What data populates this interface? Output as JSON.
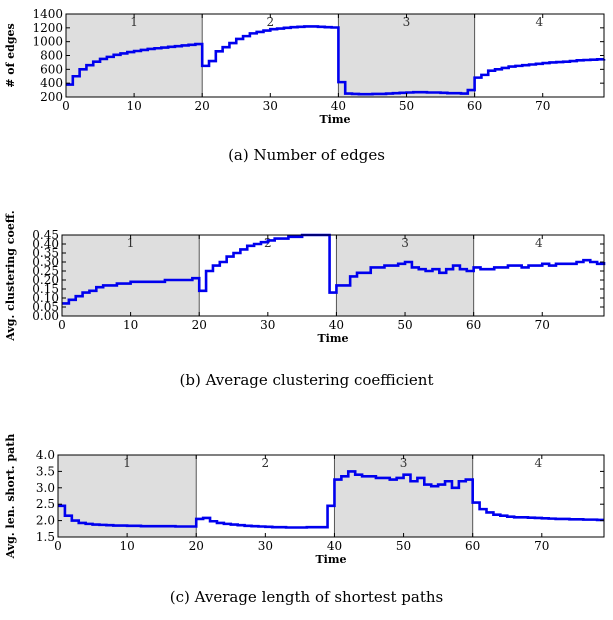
{
  "styles": {
    "line_color": "#0000ee",
    "phase_fill": "#dedede",
    "axis_color": "#000000"
  },
  "chart_data": [
    {
      "type": "line",
      "caption": "(a)  Number of edges",
      "xlabel": "Time",
      "ylabel": "# of edges",
      "xlim": [
        0,
        79
      ],
      "ylim": [
        200,
        1400
      ],
      "xticks": [
        0,
        10,
        20,
        30,
        40,
        50,
        60,
        70
      ],
      "yticks": [
        200,
        400,
        600,
        800,
        1000,
        1200,
        1400
      ],
      "phases": [
        {
          "label": "1",
          "start": 0,
          "end": 20,
          "shaded": true
        },
        {
          "label": "2",
          "start": 20,
          "end": 40,
          "shaded": false
        },
        {
          "label": "3",
          "start": 40,
          "end": 60,
          "shaded": true
        },
        {
          "label": "4",
          "start": 60,
          "end": 79,
          "shaded": false
        }
      ],
      "series": [
        {
          "step": true,
          "x": [
            0,
            1,
            2,
            3,
            4,
            5,
            6,
            7,
            8,
            9,
            10,
            11,
            12,
            13,
            14,
            15,
            16,
            17,
            18,
            19,
            20,
            21,
            22,
            23,
            24,
            25,
            26,
            27,
            28,
            29,
            30,
            31,
            32,
            33,
            34,
            35,
            36,
            37,
            38,
            39,
            40,
            41,
            42,
            43,
            44,
            45,
            46,
            47,
            48,
            49,
            50,
            51,
            52,
            53,
            54,
            55,
            56,
            57,
            58,
            59,
            60,
            61,
            62,
            63,
            64,
            65,
            66,
            67,
            68,
            69,
            70,
            71,
            72,
            73,
            74,
            75,
            76,
            77,
            78,
            79
          ],
          "y": [
            380,
            500,
            600,
            660,
            710,
            750,
            780,
            810,
            830,
            850,
            865,
            880,
            895,
            905,
            915,
            925,
            935,
            945,
            955,
            965,
            650,
            720,
            860,
            920,
            980,
            1040,
            1080,
            1120,
            1140,
            1160,
            1180,
            1190,
            1200,
            1210,
            1215,
            1220,
            1220,
            1215,
            1210,
            1205,
            415,
            250,
            245,
            240,
            240,
            245,
            245,
            250,
            255,
            260,
            265,
            270,
            270,
            265,
            265,
            260,
            255,
            255,
            250,
            300,
            480,
            520,
            580,
            600,
            620,
            640,
            650,
            660,
            670,
            680,
            690,
            700,
            705,
            710,
            720,
            730,
            735,
            740,
            745,
            750
          ]
        }
      ]
    },
    {
      "type": "line",
      "caption": "(b) Average clustering coefficient",
      "xlabel": "Time",
      "ylabel": "Avg. clustering coeff.",
      "xlim": [
        0,
        79
      ],
      "ylim": [
        0.0,
        0.45
      ],
      "xticks": [
        0,
        10,
        20,
        30,
        40,
        50,
        60,
        70
      ],
      "yticks": [
        0.0,
        0.05,
        0.1,
        0.15,
        0.2,
        0.25,
        0.3,
        0.35,
        0.4,
        0.45
      ],
      "ytick_labels": [
        "0.00",
        "0.05",
        "0.10",
        "0.15",
        "0.20",
        "0.25",
        "0.30",
        "0.35",
        "0.40",
        "0.45"
      ],
      "phases": [
        {
          "label": "1",
          "start": 0,
          "end": 20,
          "shaded": true
        },
        {
          "label": "2",
          "start": 20,
          "end": 40,
          "shaded": false
        },
        {
          "label": "3",
          "start": 40,
          "end": 60,
          "shaded": true
        },
        {
          "label": "4",
          "start": 60,
          "end": 79,
          "shaded": false
        }
      ],
      "series": [
        {
          "step": true,
          "x": [
            0,
            1,
            2,
            3,
            4,
            5,
            6,
            7,
            8,
            9,
            10,
            11,
            12,
            13,
            14,
            15,
            16,
            17,
            18,
            19,
            20,
            21,
            22,
            23,
            24,
            25,
            26,
            27,
            28,
            29,
            30,
            31,
            32,
            33,
            34,
            35,
            36,
            37,
            38,
            39,
            40,
            41,
            42,
            43,
            44,
            45,
            46,
            47,
            48,
            49,
            50,
            51,
            52,
            53,
            54,
            55,
            56,
            57,
            58,
            59,
            60,
            61,
            62,
            63,
            64,
            65,
            66,
            67,
            68,
            69,
            70,
            71,
            72,
            73,
            74,
            75,
            76,
            77,
            78,
            79
          ],
          "y": [
            0.07,
            0.09,
            0.11,
            0.13,
            0.14,
            0.16,
            0.17,
            0.17,
            0.18,
            0.18,
            0.19,
            0.19,
            0.19,
            0.19,
            0.19,
            0.2,
            0.2,
            0.2,
            0.2,
            0.21,
            0.14,
            0.25,
            0.28,
            0.3,
            0.33,
            0.35,
            0.37,
            0.39,
            0.4,
            0.41,
            0.42,
            0.43,
            0.43,
            0.44,
            0.44,
            0.45,
            0.45,
            0.45,
            0.45,
            0.13,
            0.17,
            0.17,
            0.22,
            0.24,
            0.24,
            0.27,
            0.27,
            0.28,
            0.28,
            0.29,
            0.3,
            0.27,
            0.26,
            0.25,
            0.26,
            0.24,
            0.26,
            0.28,
            0.26,
            0.25,
            0.27,
            0.26,
            0.26,
            0.27,
            0.27,
            0.28,
            0.28,
            0.27,
            0.28,
            0.28,
            0.29,
            0.28,
            0.29,
            0.29,
            0.29,
            0.3,
            0.31,
            0.3,
            0.29,
            0.3
          ]
        }
      ]
    },
    {
      "type": "line",
      "caption": "(c) Average length of shortest paths",
      "xlabel": "Time",
      "ylabel": "Avg. len. short. path",
      "xlim": [
        0,
        79
      ],
      "ylim": [
        1.5,
        4.0
      ],
      "xticks": [
        0,
        10,
        20,
        30,
        40,
        50,
        60,
        70
      ],
      "yticks": [
        1.5,
        2.0,
        2.5,
        3.0,
        3.5,
        4.0
      ],
      "ytick_labels": [
        "1.5",
        "2.0",
        "2.5",
        "3.0",
        "3.5",
        "4.0"
      ],
      "phases": [
        {
          "label": "1",
          "start": 0,
          "end": 20,
          "shaded": true
        },
        {
          "label": "2",
          "start": 20,
          "end": 40,
          "shaded": false
        },
        {
          "label": "3",
          "start": 40,
          "end": 60,
          "shaded": true
        },
        {
          "label": "4",
          "start": 60,
          "end": 79,
          "shaded": false
        }
      ],
      "series": [
        {
          "step": true,
          "x": [
            0,
            1,
            2,
            3,
            4,
            5,
            6,
            7,
            8,
            9,
            10,
            11,
            12,
            13,
            14,
            15,
            16,
            17,
            18,
            19,
            20,
            21,
            22,
            23,
            24,
            25,
            26,
            27,
            28,
            29,
            30,
            31,
            32,
            33,
            34,
            35,
            36,
            37,
            38,
            39,
            40,
            41,
            42,
            43,
            44,
            45,
            46,
            47,
            48,
            49,
            50,
            51,
            52,
            53,
            54,
            55,
            56,
            57,
            58,
            59,
            60,
            61,
            62,
            63,
            64,
            65,
            66,
            67,
            68,
            69,
            70,
            71,
            72,
            73,
            74,
            75,
            76,
            77,
            78,
            79
          ],
          "y": [
            2.45,
            2.15,
            2.0,
            1.93,
            1.9,
            1.88,
            1.87,
            1.86,
            1.85,
            1.85,
            1.84,
            1.84,
            1.83,
            1.83,
            1.83,
            1.83,
            1.83,
            1.82,
            1.82,
            1.82,
            2.05,
            2.08,
            1.98,
            1.93,
            1.9,
            1.88,
            1.86,
            1.84,
            1.83,
            1.82,
            1.81,
            1.8,
            1.8,
            1.79,
            1.79,
            1.79,
            1.8,
            1.8,
            1.8,
            2.45,
            3.25,
            3.35,
            3.5,
            3.4,
            3.35,
            3.35,
            3.3,
            3.3,
            3.25,
            3.3,
            3.4,
            3.2,
            3.3,
            3.1,
            3.05,
            3.1,
            3.2,
            3.0,
            3.2,
            3.25,
            2.55,
            2.35,
            2.25,
            2.18,
            2.15,
            2.12,
            2.1,
            2.1,
            2.09,
            2.08,
            2.07,
            2.06,
            2.05,
            2.05,
            2.04,
            2.04,
            2.03,
            2.03,
            2.02,
            2.02
          ]
        }
      ]
    }
  ]
}
